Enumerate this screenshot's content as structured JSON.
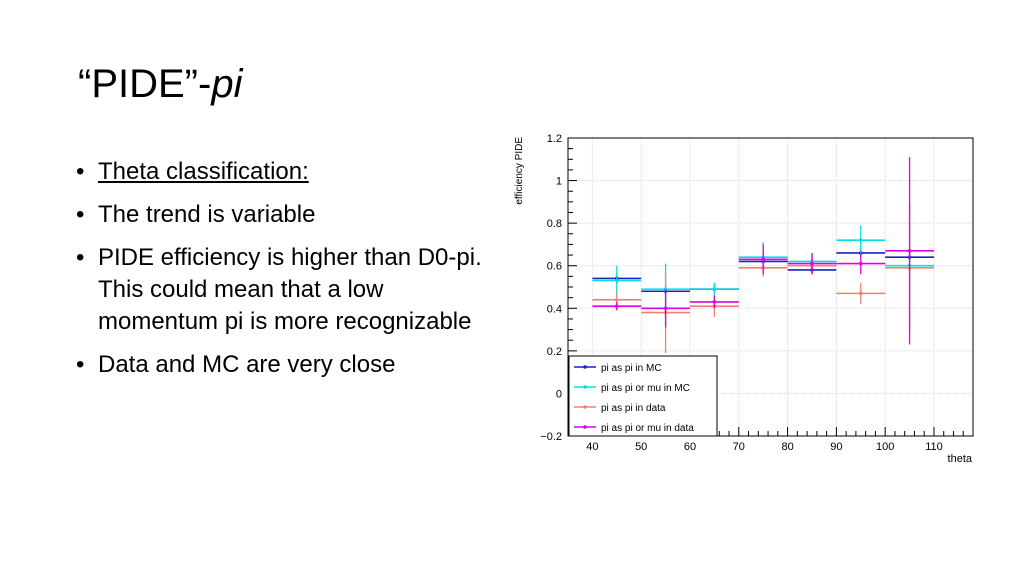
{
  "slide": {
    "title_quoted": "“PIDE”-",
    "title_italic": "pi",
    "bullets": [
      "Theta classification:",
      "The trend is variable",
      "PIDE efficiency is higher than D0-pi. This could mean that a low momentum pi is more recognizable",
      "Data and MC are very close"
    ]
  },
  "chart_data": {
    "type": "scatter",
    "xlabel": "theta",
    "ylabel": "efficiency PIDE",
    "xlim": [
      35,
      118
    ],
    "ylim": [
      -0.2,
      1.2
    ],
    "xticks": [
      40,
      50,
      60,
      70,
      80,
      90,
      100,
      110
    ],
    "yticks": [
      -0.2,
      0,
      0.2,
      0.4,
      0.6,
      0.8,
      1,
      1.2
    ],
    "ytick_labels": [
      "−0.2",
      "0",
      "0.2",
      "0.4",
      "0.6",
      "0.8",
      "1",
      "1.2"
    ],
    "grid": true,
    "legend_position": "bottom-left",
    "series": [
      {
        "name": "pi as pi in MC",
        "color": "#1f1fcc",
        "marker": "dot",
        "points": [
          {
            "x": 45,
            "xerr": 5,
            "y": 0.54,
            "yerr": 0.02
          },
          {
            "x": 55,
            "xerr": 5,
            "y": 0.48,
            "yerr": 0.02
          },
          {
            "x": 65,
            "xerr": 5,
            "y": 0.49,
            "yerr": 0.02
          },
          {
            "x": 75,
            "xerr": 5,
            "y": 0.62,
            "yerr": 0.02
          },
          {
            "x": 85,
            "xerr": 5,
            "y": 0.58,
            "yerr": 0.02
          },
          {
            "x": 95,
            "xerr": 5,
            "y": 0.66,
            "yerr": 0.02
          },
          {
            "x": 105,
            "xerr": 5,
            "y": 0.64,
            "yerr": 0.02
          }
        ]
      },
      {
        "name": "pi as pi or mu in MC",
        "color": "#00e0e0",
        "marker": "dot",
        "points": [
          {
            "x": 45,
            "xerr": 5,
            "y": 0.53,
            "yerr": 0.07
          },
          {
            "x": 55,
            "xerr": 5,
            "y": 0.49,
            "yerr": 0.12
          },
          {
            "x": 65,
            "xerr": 5,
            "y": 0.49,
            "yerr": 0.03
          },
          {
            "x": 75,
            "xerr": 5,
            "y": 0.64,
            "yerr": 0.07
          },
          {
            "x": 85,
            "xerr": 5,
            "y": 0.62,
            "yerr": 0.03
          },
          {
            "x": 95,
            "xerr": 5,
            "y": 0.72,
            "yerr": 0.07
          },
          {
            "x": 105,
            "xerr": 5,
            "y": 0.6,
            "yerr": 0.03
          }
        ]
      },
      {
        "name": "pi as pi in data",
        "color": "#f08070",
        "marker": "dot",
        "points": [
          {
            "x": 45,
            "xerr": 5,
            "y": 0.44,
            "yerr": 0.03
          },
          {
            "x": 55,
            "xerr": 5,
            "y": 0.38,
            "yerr": 0.19
          },
          {
            "x": 65,
            "xerr": 5,
            "y": 0.41,
            "yerr": 0.05
          },
          {
            "x": 75,
            "xerr": 5,
            "y": 0.59,
            "yerr": 0.04
          },
          {
            "x": 85,
            "xerr": 5,
            "y": 0.6,
            "yerr": 0.04
          },
          {
            "x": 95,
            "xerr": 5,
            "y": 0.47,
            "yerr": 0.05
          },
          {
            "x": 105,
            "xerr": 5,
            "y": 0.59,
            "yerr": 0.3
          }
        ]
      },
      {
        "name": "pi as pi or mu in data",
        "color": "#e000e0",
        "marker": "dot",
        "points": [
          {
            "x": 45,
            "xerr": 5,
            "y": 0.41,
            "yerr": 0.02
          },
          {
            "x": 55,
            "xerr": 5,
            "y": 0.4,
            "yerr": 0.09
          },
          {
            "x": 65,
            "xerr": 5,
            "y": 0.43,
            "yerr": 0.03
          },
          {
            "x": 75,
            "xerr": 5,
            "y": 0.63,
            "yerr": 0.07
          },
          {
            "x": 85,
            "xerr": 5,
            "y": 0.61,
            "yerr": 0.05
          },
          {
            "x": 95,
            "xerr": 5,
            "y": 0.61,
            "yerr": 0.05
          },
          {
            "x": 105,
            "xerr": 5,
            "y": 0.67,
            "yerr": 0.44
          }
        ]
      }
    ]
  }
}
